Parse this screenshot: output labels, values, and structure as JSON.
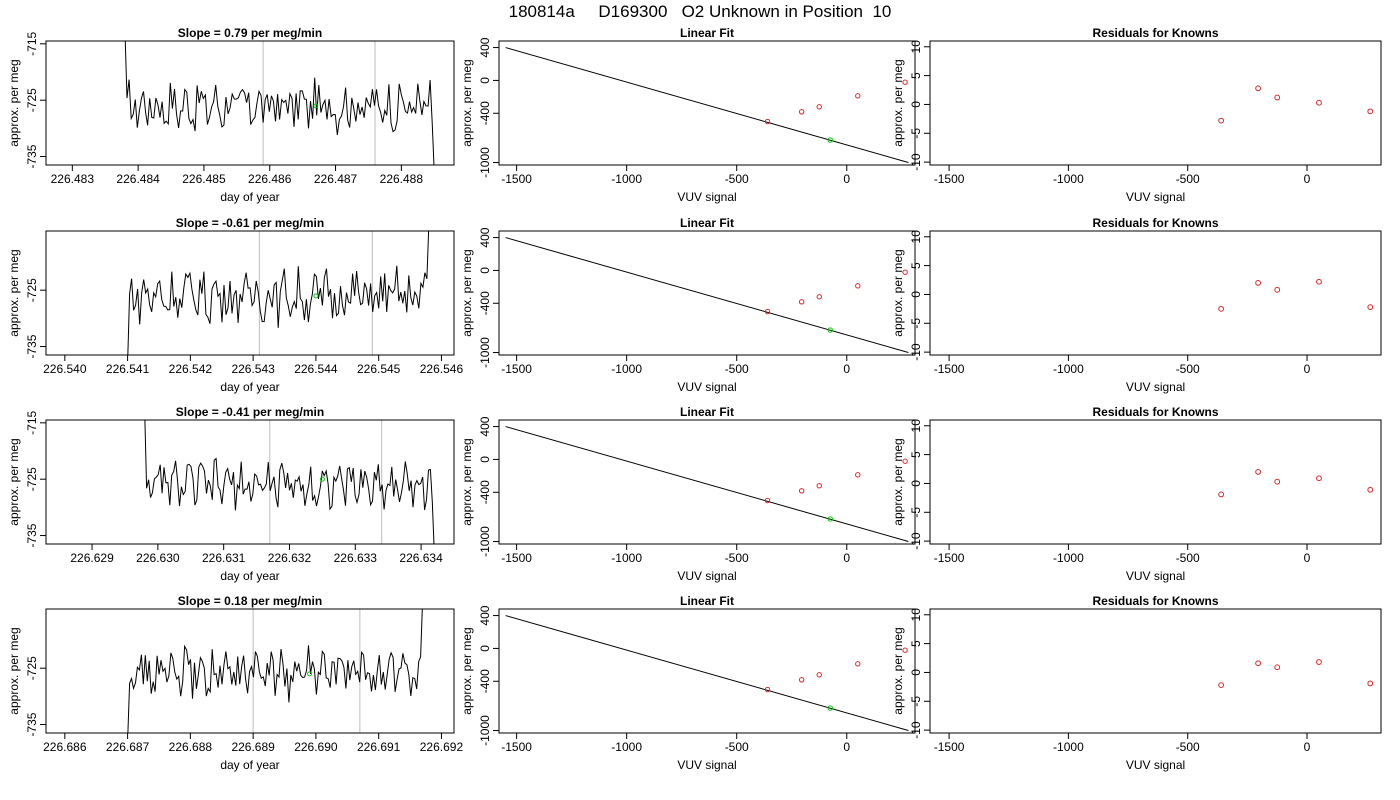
{
  "page_title": "180814a     D169300   O2 Unknown in Position  10",
  "colors": {
    "trace": "#000000",
    "marker_unknown": "#00c800",
    "marker_known": "#e0242a",
    "vline": "#c8c8c8",
    "frame": "#000000"
  },
  "chart_data": [
    {
      "type": "line",
      "title": "Slope =  0.79  per meg/min",
      "xlabel": "day of year",
      "ylabel": "approx. per meg",
      "xticks": [
        "226.483",
        "226.484",
        "226.485",
        "226.486",
        "226.487",
        "226.488"
      ],
      "xlim": [
        226.4826,
        226.4888
      ],
      "yticks": [
        "-715",
        "-725",
        "-735"
      ],
      "ylim": [
        -736.5,
        -714.5
      ],
      "vlines": [
        226.4859,
        226.4876
      ],
      "trace": {
        "x_start": 226.4838,
        "x_end": 226.4885,
        "start_y": -713,
        "end_y": -738,
        "mean": -726,
        "amplitude": 3.5
      },
      "marker": {
        "x": 226.4867,
        "y": -726
      }
    },
    {
      "type": "scatter",
      "title": "Linear Fit",
      "xlabel": "VUV signal",
      "ylabel": "approx. per meg",
      "xticks": [
        "-1500",
        "-1000",
        "-500",
        "0"
      ],
      "xlim": [
        -1580,
        310
      ],
      "yticks": [
        "400",
        "0",
        "-400",
        "-1000"
      ],
      "ylim": [
        -1030,
        480
      ],
      "fit_line": {
        "x": [
          -1550,
          280
        ],
        "y": [
          400,
          -1000
        ]
      },
      "knowns": {
        "x": [
          -360,
          -205,
          -125,
          50,
          265
        ],
        "y": [
          -501,
          -382,
          -321,
          -188,
          -22
        ]
      },
      "unknown": {
        "x": -75,
        "y": -726
      }
    },
    {
      "type": "scatter",
      "title": "Residuals for Knowns",
      "xlabel": "VUV signal",
      "ylabel": "approx. per meg",
      "xticks": [
        "-1500",
        "-1000",
        "-500",
        "0"
      ],
      "xlim": [
        -1580,
        310
      ],
      "yticks": [
        "10",
        "5",
        "0",
        "-5",
        "-10"
      ],
      "ylim": [
        -10.5,
        11
      ],
      "x": [
        -360,
        -205,
        -125,
        50,
        265
      ],
      "y": [
        -2.8,
        2.8,
        1.2,
        0.3,
        -1.2
      ]
    },
    {
      "type": "line",
      "title": "Slope =  -0.61  per meg/min",
      "xlabel": "day of year",
      "ylabel": "approx. per meg",
      "xticks": [
        "226.540",
        "226.541",
        "226.542",
        "226.543",
        "226.544",
        "226.545",
        "226.546"
      ],
      "xlim": [
        226.5397,
        226.5462
      ],
      "yticks": [
        "-725",
        "-735"
      ],
      "ylim": [
        -736.5,
        -714.5
      ],
      "vlines": [
        226.5431,
        226.5449
      ],
      "trace": {
        "x_start": 226.541,
        "x_end": 226.5458,
        "start_y": -738,
        "end_y": -713,
        "mean": -726,
        "amplitude": 3.8
      },
      "marker": {
        "x": 226.544,
        "y": -726
      }
    },
    {
      "type": "scatter",
      "title": "Linear Fit",
      "xlabel": "VUV signal",
      "ylabel": "approx. per meg",
      "xticks": [
        "-1500",
        "-1000",
        "-500",
        "0"
      ],
      "xlim": [
        -1580,
        310
      ],
      "yticks": [
        "400",
        "0",
        "-400",
        "-1000"
      ],
      "ylim": [
        -1030,
        480
      ],
      "fit_line": {
        "x": [
          -1550,
          280
        ],
        "y": [
          400,
          -1000
        ]
      },
      "knowns": {
        "x": [
          -360,
          -205,
          -125,
          50,
          265
        ],
        "y": [
          -501,
          -382,
          -321,
          -188,
          -22
        ]
      },
      "unknown": {
        "x": -75,
        "y": -726
      }
    },
    {
      "type": "scatter",
      "title": "Residuals for Knowns",
      "xlabel": "VUV signal",
      "ylabel": "approx. per meg",
      "xticks": [
        "-1500",
        "-1000",
        "-500",
        "0"
      ],
      "xlim": [
        -1580,
        310
      ],
      "yticks": [
        "10",
        "5",
        "0",
        "-5",
        "-10"
      ],
      "ylim": [
        -10.5,
        11
      ],
      "x": [
        -360,
        -205,
        -125,
        50,
        265
      ],
      "y": [
        -2.5,
        2.0,
        0.8,
        2.2,
        -2.2
      ]
    },
    {
      "type": "line",
      "title": "Slope =  -0.41  per meg/min",
      "xlabel": "day of year",
      "ylabel": "approx. per meg",
      "xticks": [
        "226.629",
        "226.630",
        "226.631",
        "226.632",
        "226.633",
        "226.634"
      ],
      "xlim": [
        226.6283,
        226.6345
      ],
      "yticks": [
        "-715",
        "-725",
        "-735"
      ],
      "ylim": [
        -736.5,
        -714.5
      ],
      "vlines": [
        226.6317,
        226.6334
      ],
      "trace": {
        "x_start": 226.6298,
        "x_end": 226.6342,
        "start_y": -713,
        "end_y": -738,
        "mean": -726,
        "amplitude": 3.2
      },
      "marker": {
        "x": 226.6325,
        "y": -725
      }
    },
    {
      "type": "scatter",
      "title": "Linear Fit",
      "xlabel": "VUV signal",
      "ylabel": "approx. per meg",
      "xticks": [
        "-1500",
        "-1000",
        "-500",
        "0"
      ],
      "xlim": [
        -1580,
        310
      ],
      "yticks": [
        "400",
        "0",
        "-400",
        "-1000"
      ],
      "ylim": [
        -1030,
        480
      ],
      "fit_line": {
        "x": [
          -1550,
          280
        ],
        "y": [
          400,
          -1000
        ]
      },
      "knowns": {
        "x": [
          -360,
          -205,
          -125,
          50,
          265
        ],
        "y": [
          -501,
          -382,
          -321,
          -188,
          -22
        ]
      },
      "unknown": {
        "x": -75,
        "y": -725
      }
    },
    {
      "type": "scatter",
      "title": "Residuals for Knowns",
      "xlabel": "VUV signal",
      "ylabel": "approx. per meg",
      "xticks": [
        "-1500",
        "-1000",
        "-500",
        "0"
      ],
      "xlim": [
        -1580,
        310
      ],
      "yticks": [
        "10",
        "5",
        "0",
        "-5",
        "-10"
      ],
      "ylim": [
        -10.5,
        11
      ],
      "x": [
        -360,
        -205,
        -125,
        50,
        265
      ],
      "y": [
        -1.9,
        2.0,
        0.3,
        0.9,
        -1.1
      ]
    },
    {
      "type": "line",
      "title": "Slope =  0.18  per meg/min",
      "xlabel": "day of year",
      "ylabel": "approx. per meg",
      "xticks": [
        "226.686",
        "226.687",
        "226.688",
        "226.689",
        "226.690",
        "226.691",
        "226.692"
      ],
      "xlim": [
        226.6857,
        226.6922
      ],
      "yticks": [
        "-725",
        "-735"
      ],
      "ylim": [
        -736.5,
        -714.5
      ],
      "vlines": [
        226.689,
        226.6907
      ],
      "trace": {
        "x_start": 226.687,
        "x_end": 226.6917,
        "start_y": -738,
        "end_y": -713,
        "mean": -726,
        "amplitude": 3.5
      },
      "marker": {
        "x": 226.6899,
        "y": -726
      }
    },
    {
      "type": "scatter",
      "title": "Linear Fit",
      "xlabel": "VUV signal",
      "ylabel": "approx. per meg",
      "xticks": [
        "-1500",
        "-1000",
        "-500",
        "0"
      ],
      "xlim": [
        -1580,
        310
      ],
      "yticks": [
        "400",
        "0",
        "-400",
        "-1000"
      ],
      "ylim": [
        -1030,
        480
      ],
      "fit_line": {
        "x": [
          -1550,
          280
        ],
        "y": [
          400,
          -1000
        ]
      },
      "knowns": {
        "x": [
          -360,
          -205,
          -125,
          50,
          265
        ],
        "y": [
          -501,
          -382,
          -321,
          -188,
          -22
        ]
      },
      "unknown": {
        "x": -75,
        "y": -726
      }
    },
    {
      "type": "scatter",
      "title": "Residuals for Knowns",
      "xlabel": "VUV signal",
      "ylabel": "approx. per meg",
      "xticks": [
        "-1500",
        "-1000",
        "-500",
        "0"
      ],
      "xlim": [
        -1580,
        310
      ],
      "yticks": [
        "10",
        "5",
        "0",
        "-5",
        "-10"
      ],
      "ylim": [
        -10.5,
        11
      ],
      "x": [
        -360,
        -205,
        -125,
        50,
        265
      ],
      "y": [
        -2.2,
        1.6,
        0.9,
        1.8,
        -1.9
      ]
    }
  ]
}
